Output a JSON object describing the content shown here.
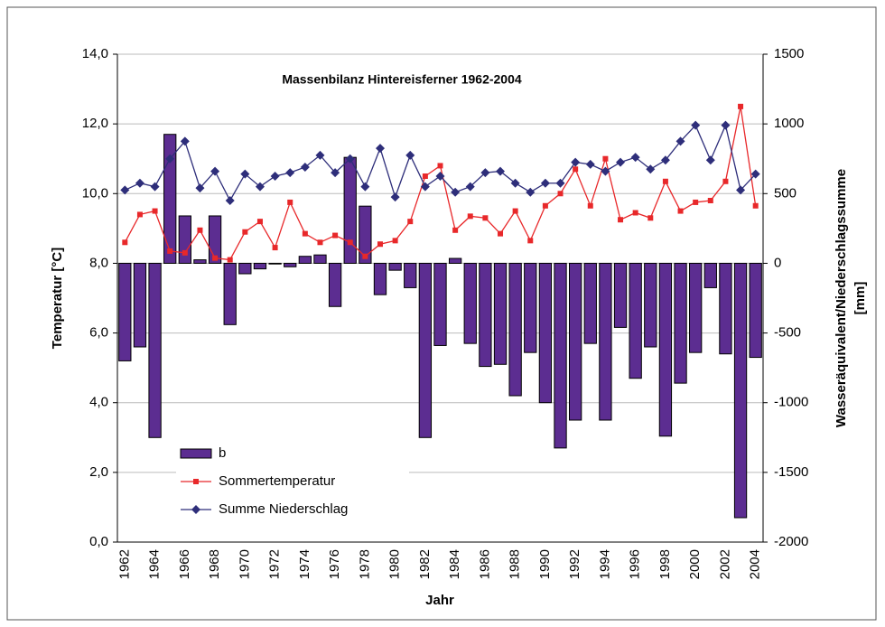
{
  "chart_data": {
    "type": "bar",
    "title": "Massenbilanz Hintereisferner 1962-2004",
    "xlabel": "Jahr",
    "ylabel": "Temperatur [°C]",
    "y2label": [
      "Wasseräquivalent/Niederschlagssumme",
      "[mm]"
    ],
    "categories": [
      "1962",
      null,
      "1964",
      null,
      "1966",
      null,
      "1968",
      null,
      "1970",
      null,
      "1972",
      null,
      "1974",
      null,
      "1976",
      null,
      "1978",
      null,
      "1980",
      null,
      "1982",
      null,
      "1984",
      null,
      "1986",
      null,
      "1988",
      null,
      "1990",
      null,
      "1992",
      null,
      "1994",
      null,
      "1996",
      null,
      "1998",
      null,
      "2000",
      null,
      "2002",
      null,
      "2004"
    ],
    "ylim": [
      0,
      14
    ],
    "yticks": [
      {
        "value": 0,
        "label": "0,0"
      },
      {
        "value": 2,
        "label": "2,0"
      },
      {
        "value": 4,
        "label": "4,0"
      },
      {
        "value": 6,
        "label": "6,0"
      },
      {
        "value": 8,
        "label": "8,0"
      },
      {
        "value": 10,
        "label": "10,0"
      },
      {
        "value": 12,
        "label": "12,0"
      },
      {
        "value": 14,
        "label": "14,0"
      }
    ],
    "y2lim": [
      -2000,
      1500
    ],
    "y2ticks": [
      -2000,
      -1500,
      -1000,
      -500,
      0,
      500,
      1000,
      1500
    ],
    "grid": true,
    "legend": "lower left",
    "series": [
      {
        "name": "b",
        "type": "bar",
        "axis": "y2",
        "color": "#5c2d91",
        "values": [
          -700,
          -600,
          -1250,
          925,
          340,
          25,
          340,
          -440,
          -75,
          -40,
          -5,
          -25,
          50,
          60,
          -310,
          760,
          410,
          -225,
          -50,
          -175,
          -1250,
          -590,
          35,
          -575,
          -740,
          -725,
          -950,
          -640,
          -1000,
          -1325,
          -1125,
          -575,
          -1125,
          -460,
          -825,
          -600,
          -1240,
          -860,
          -640,
          -175,
          -650,
          -1825,
          -675
        ]
      },
      {
        "name": "Sommertemperatur",
        "type": "line",
        "marker": "square",
        "color": "#e8282a",
        "values": [
          8.6,
          9.4,
          9.5,
          8.35,
          8.3,
          8.95,
          8.15,
          8.1,
          8.9,
          9.2,
          8.45,
          9.75,
          8.85,
          8.6,
          8.8,
          8.6,
          8.2,
          8.55,
          8.65,
          9.2,
          10.5,
          10.8,
          8.95,
          9.35,
          9.3,
          8.85,
          9.5,
          8.65,
          9.65,
          10.0,
          10.7,
          9.65,
          11.0,
          9.25,
          9.45,
          9.3,
          10.35,
          9.5,
          9.75,
          9.8,
          10.35,
          12.5,
          9.65
        ]
      },
      {
        "name": "Summe Niederschlag",
        "type": "line",
        "marker": "diamond",
        "axis": "y2",
        "color": "#2e2e7a",
        "values": [
          525,
          575,
          550,
          750,
          875,
          540,
          660,
          450,
          640,
          550,
          625,
          650,
          690,
          775,
          650,
          750,
          550,
          825,
          475,
          775,
          550,
          625,
          510,
          550,
          650,
          660,
          575,
          510,
          575,
          575,
          725,
          710,
          660,
          725,
          760,
          675,
          740,
          875,
          990,
          740,
          990,
          525,
          640
        ]
      }
    ]
  }
}
